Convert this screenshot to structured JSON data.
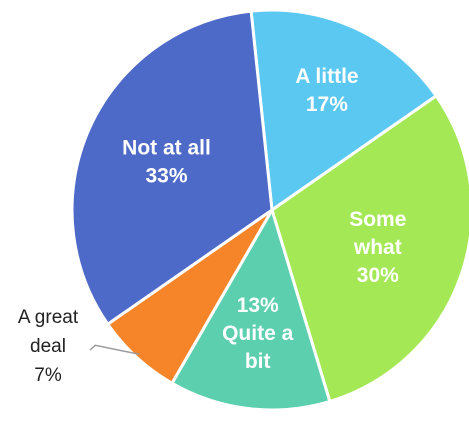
{
  "chart_data": {
    "type": "pie",
    "slices": [
      {
        "category": "A little",
        "value": 17,
        "label_lines": [
          "A little",
          "17%"
        ],
        "color": "#5BC8F2"
      },
      {
        "category": "Some what",
        "value": 30,
        "label_lines": [
          "Some",
          "what",
          "30%"
        ],
        "color": "#A5E856"
      },
      {
        "category": "Quite a bit",
        "value": 13,
        "label_lines": [
          "13%",
          "Quite a",
          "bit"
        ],
        "color": "#5BCFAE"
      },
      {
        "category": "A great deal",
        "value": 7,
        "label_lines": [
          "A great",
          "deal",
          "7%"
        ],
        "color": "#F6852A",
        "label_position": "outside"
      },
      {
        "category": "Not at all",
        "value": 33,
        "label_lines": [
          "Not at all",
          "33%"
        ],
        "color": "#4E6AC9"
      }
    ]
  }
}
